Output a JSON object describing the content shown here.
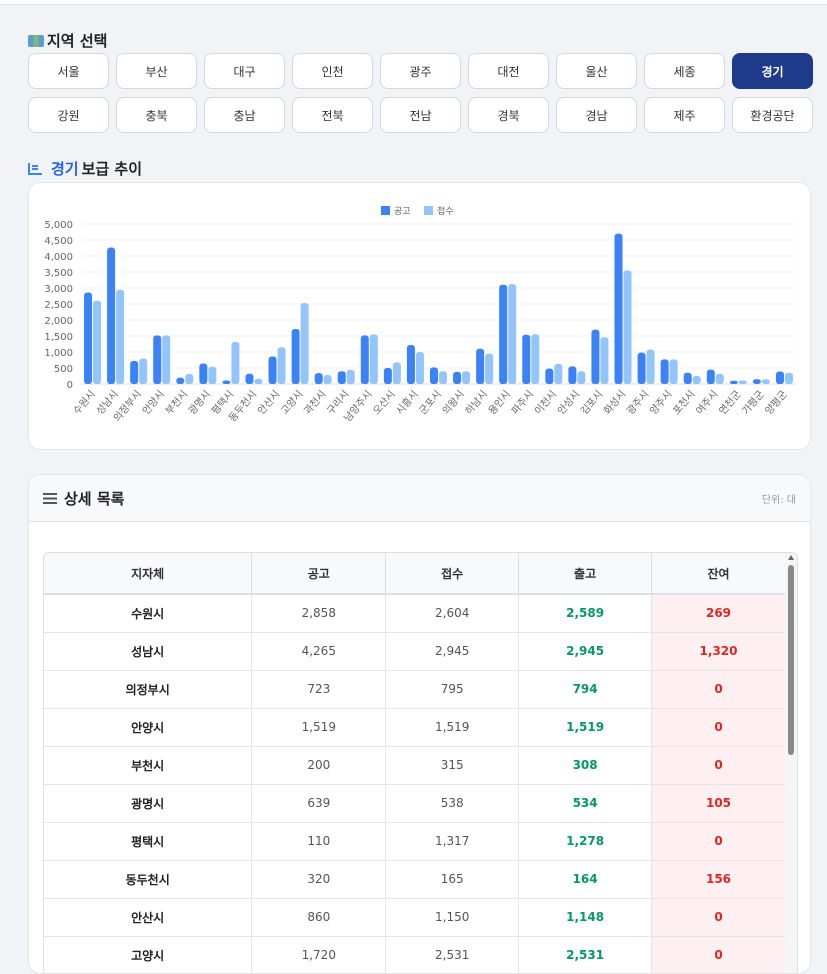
{
  "region_section": {
    "title": "지역 선택",
    "icon": "map-icon",
    "regions": [
      "서울",
      "부산",
      "대구",
      "인천",
      "광주",
      "대전",
      "울산",
      "세종",
      "경기",
      "강원",
      "충북",
      "충남",
      "전북",
      "전남",
      "경북",
      "경남",
      "제주",
      "환경공단"
    ],
    "selected": "경기"
  },
  "trend": {
    "title_region": "경기",
    "title_rest": "보급 추이"
  },
  "chart_data": {
    "type": "bar",
    "title": "경기보급 추이",
    "legend_position": "top",
    "categories": [
      "수원시",
      "성남시",
      "의정부시",
      "안양시",
      "부천시",
      "광명시",
      "평택시",
      "동두천시",
      "안산시",
      "고양시",
      "과천시",
      "구리시",
      "남양주시",
      "오산시",
      "시흥시",
      "군포시",
      "의왕시",
      "하남시",
      "용인시",
      "파주시",
      "이천시",
      "안성시",
      "김포시",
      "화성시",
      "광주시",
      "양주시",
      "포천시",
      "여주시",
      "연천군",
      "가평군",
      "양평군"
    ],
    "series": [
      {
        "name": "공고",
        "color": "#3b82f6",
        "values": [
          2858,
          4265,
          723,
          1519,
          200,
          639,
          110,
          320,
          860,
          1720,
          340,
          400,
          1520,
          500,
          1220,
          520,
          380,
          1100,
          3100,
          1540,
          480,
          550,
          1700,
          4700,
          980,
          770,
          350,
          450,
          100,
          150,
          390
        ]
      },
      {
        "name": "접수",
        "color": "#93c5fd",
        "values": [
          2604,
          2945,
          795,
          1519,
          315,
          538,
          1317,
          165,
          1150,
          2531,
          280,
          440,
          1550,
          680,
          1000,
          400,
          400,
          950,
          3120,
          1560,
          630,
          400,
          1460,
          3550,
          1080,
          770,
          250,
          320,
          110,
          150,
          350
        ]
      }
    ],
    "yticks": [
      "0",
      "500",
      "1,000",
      "1,500",
      "2,000",
      "2,500",
      "3,000",
      "3,500",
      "4,000",
      "4,500",
      "5,000"
    ],
    "ylim": [
      0,
      5000
    ],
    "grid": true
  },
  "detail": {
    "title": "상세 목록",
    "unit": "단위: 대",
    "columns": [
      "지자체",
      "공고",
      "접수",
      "출고",
      "잔여"
    ],
    "rows": [
      [
        "수원시",
        "2,858",
        "2,604",
        "2,589",
        "269"
      ],
      [
        "성남시",
        "4,265",
        "2,945",
        "2,945",
        "1,320"
      ],
      [
        "의정부시",
        "723",
        "795",
        "794",
        "0"
      ],
      [
        "안양시",
        "1,519",
        "1,519",
        "1,519",
        "0"
      ],
      [
        "부천시",
        "200",
        "315",
        "308",
        "0"
      ],
      [
        "광명시",
        "639",
        "538",
        "534",
        "105"
      ],
      [
        "평택시",
        "110",
        "1,317",
        "1,278",
        "0"
      ],
      [
        "동두천시",
        "320",
        "165",
        "164",
        "156"
      ],
      [
        "안산시",
        "860",
        "1,150",
        "1,148",
        "0"
      ],
      [
        "고양시",
        "1,720",
        "2,531",
        "2,531",
        "0"
      ]
    ]
  }
}
